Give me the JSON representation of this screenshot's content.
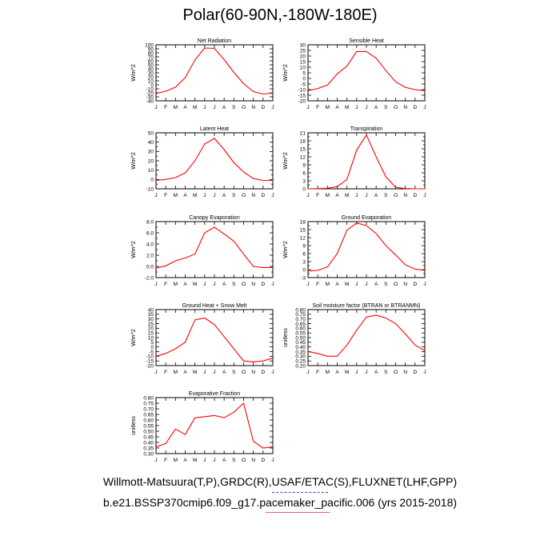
{
  "title": "Polar(60-90N,-180W-180E)",
  "footer": {
    "line1": "Willmott-Matsuura(T,P),GRDC(R),USAF/ETAC(S),FLUXNET(LHF,GPP)",
    "line2": "b.e21.BSSP370cmip6.f09_g17.pacemaker_pacific.006 (yrs 2015-2018)"
  },
  "colors": {
    "series": "#ff0000",
    "axes": "#000000"
  },
  "chart_data": [
    {
      "type": "line",
      "title": "Net Radiation",
      "ylabel": "W/m^2",
      "categories": [
        "J",
        "F",
        "M",
        "A",
        "M",
        "J",
        "J",
        "A",
        "S",
        "O",
        "N",
        "D",
        "J"
      ],
      "ylim": [
        -40,
        100
      ],
      "yticks": [
        -40,
        -30,
        -20,
        -10,
        0,
        10,
        20,
        30,
        40,
        50,
        60,
        70,
        80,
        90,
        100
      ],
      "ytick_labels": [
        "-40",
        "-30",
        "-20",
        "-10",
        "0",
        "10",
        "20",
        "30",
        "40",
        "50",
        "60",
        "70",
        "80",
        "90",
        "100"
      ],
      "values": [
        -22,
        -16,
        -6,
        18,
        62,
        92,
        91,
        63,
        31,
        3,
        -17,
        -23,
        -21
      ]
    },
    {
      "type": "line",
      "title": "Sensible Heat",
      "ylabel": "W/m^2",
      "categories": [
        "J",
        "F",
        "M",
        "A",
        "M",
        "J",
        "J",
        "A",
        "S",
        "O",
        "N",
        "D",
        "J"
      ],
      "ylim": [
        -20,
        30
      ],
      "yticks": [
        -20,
        -15,
        -10,
        -5,
        0,
        5,
        10,
        15,
        20,
        25,
        30
      ],
      "ytick_labels": [
        "-20",
        "-15",
        "-10",
        "-5",
        "0",
        "5",
        "10",
        "15",
        "20",
        "25",
        "30"
      ],
      "values": [
        -11,
        -9,
        -6,
        4,
        11,
        24,
        24,
        18,
        7,
        -3,
        -8,
        -10,
        -11
      ]
    },
    {
      "type": "line",
      "title": "Latent Heat",
      "ylabel": "W/m^2",
      "categories": [
        "J",
        "F",
        "M",
        "A",
        "M",
        "J",
        "J",
        "A",
        "S",
        "O",
        "N",
        "D",
        "J"
      ],
      "ylim": [
        -10,
        50
      ],
      "yticks": [
        -10,
        -5,
        0,
        5,
        10,
        15,
        20,
        25,
        30,
        35,
        40,
        45,
        50
      ],
      "ytick_labels": [
        "-10",
        "",
        "0",
        "",
        "10",
        "",
        "20",
        "",
        "30",
        "",
        "40",
        "",
        "50"
      ],
      "values": [
        -1,
        0,
        2,
        7,
        20,
        38,
        44,
        32,
        18,
        8,
        1,
        -1,
        -1
      ]
    },
    {
      "type": "line",
      "title": "Transpiration",
      "ylabel": "W/m^2",
      "categories": [
        "J",
        "F",
        "M",
        "A",
        "M",
        "J",
        "J",
        "A",
        "S",
        "O",
        "N",
        "D",
        "J"
      ],
      "ylim": [
        0,
        21
      ],
      "yticks": [
        0,
        1.5,
        3,
        4.5,
        6,
        7.5,
        9,
        10.5,
        12,
        13.5,
        15,
        16.5,
        18,
        19.5,
        21
      ],
      "ytick_labels": [
        "0",
        "",
        "3",
        "",
        "6",
        "",
        "9",
        "",
        "12",
        "",
        "15",
        "",
        "18",
        "",
        "21"
      ],
      "values": [
        0,
        0.05,
        0.2,
        0.8,
        3.5,
        14.5,
        20.2,
        12,
        4.5,
        0.6,
        0.1,
        0,
        0
      ]
    },
    {
      "type": "line",
      "title": "Canopy Evaporation",
      "ylabel": "W/m^2",
      "categories": [
        "J",
        "F",
        "M",
        "A",
        "M",
        "J",
        "J",
        "A",
        "S",
        "O",
        "N",
        "D",
        "J"
      ],
      "ylim": [
        -2,
        8
      ],
      "yticks": [
        -2,
        -1,
        0,
        1,
        2,
        3,
        4,
        5,
        6,
        7,
        8
      ],
      "ytick_labels": [
        "-2.0",
        "",
        "0.0",
        "",
        "2.0",
        "",
        "4.0",
        "",
        "6.0",
        "",
        "8.0"
      ],
      "values": [
        -0.3,
        0.1,
        1,
        1.5,
        2.2,
        6,
        7,
        5.8,
        4.5,
        2.2,
        0,
        -0.2,
        -0.2
      ]
    },
    {
      "type": "line",
      "title": "Ground Evaporation",
      "ylabel": "W/m^2",
      "categories": [
        "J",
        "F",
        "M",
        "A",
        "M",
        "J",
        "J",
        "A",
        "S",
        "O",
        "N",
        "D",
        "J"
      ],
      "ylim": [
        -3,
        18
      ],
      "yticks": [
        -3,
        -1.5,
        0,
        1.5,
        3,
        4.5,
        6,
        7.5,
        9,
        10.5,
        12,
        13.5,
        15,
        16.5,
        18
      ],
      "ytick_labels": [
        "-3",
        "",
        "0",
        "",
        "3",
        "",
        "6",
        "",
        "9",
        "",
        "12",
        "",
        "15",
        "",
        "18"
      ],
      "values": [
        -0.5,
        -0.3,
        1,
        6,
        14.8,
        17.5,
        16.5,
        13.5,
        9,
        5.5,
        1.8,
        0.2,
        -0.3
      ]
    },
    {
      "type": "line",
      "title": "Ground Heat + Snow Melt",
      "ylabel": "W/m^2",
      "categories": [
        "J",
        "F",
        "M",
        "A",
        "M",
        "J",
        "J",
        "A",
        "S",
        "O",
        "N",
        "D",
        "J"
      ],
      "ylim": [
        -20,
        40
      ],
      "yticks": [
        -20,
        -15,
        -10,
        -5,
        0,
        5,
        10,
        15,
        20,
        25,
        30,
        35,
        40
      ],
      "ytick_labels": [
        "-20",
        "-15",
        "-10",
        "-5",
        "0",
        "5",
        "10",
        "15",
        "20",
        "25",
        "30",
        "35",
        "40"
      ],
      "values": [
        -10,
        -7,
        -2,
        5,
        29,
        31,
        24,
        11,
        -2,
        -15,
        -16,
        -15,
        -12
      ]
    },
    {
      "type": "line",
      "title": "Soil moisture factor (BTRAN or BTRANMN)",
      "ylabel": "unitless",
      "categories": [
        "J",
        "F",
        "M",
        "A",
        "M",
        "J",
        "J",
        "A",
        "S",
        "O",
        "N",
        "D",
        "J"
      ],
      "ylim": [
        0.2,
        0.8
      ],
      "yticks": [
        0.2,
        0.25,
        0.3,
        0.35,
        0.4,
        0.45,
        0.5,
        0.55,
        0.6,
        0.65,
        0.7,
        0.75,
        0.8
      ],
      "ytick_labels": [
        "0.20",
        "0.25",
        "0.30",
        "0.35",
        "0.40",
        "0.45",
        "0.50",
        "0.55",
        "0.60",
        "0.65",
        "0.70",
        "0.75",
        "0.80"
      ],
      "values": [
        0.35,
        0.33,
        0.3,
        0.3,
        0.42,
        0.58,
        0.72,
        0.74,
        0.71,
        0.65,
        0.54,
        0.42,
        0.36
      ]
    },
    {
      "type": "line",
      "title": "Evaporative Fraction",
      "ylabel": "unitless",
      "categories": [
        "J",
        "F",
        "M",
        "A",
        "M",
        "J",
        "J",
        "A",
        "S",
        "O",
        "N",
        "D",
        "J"
      ],
      "ylim": [
        0.3,
        0.8
      ],
      "yticks": [
        0.3,
        0.35,
        0.4,
        0.45,
        0.5,
        0.55,
        0.6,
        0.65,
        0.7,
        0.75,
        0.8
      ],
      "ytick_labels": [
        "0.30",
        "0.35",
        "0.40",
        "0.45",
        "0.50",
        "0.55",
        "0.60",
        "0.65",
        "0.70",
        "0.75",
        "0.80"
      ],
      "values": [
        0.36,
        0.39,
        0.52,
        0.47,
        0.62,
        0.63,
        0.64,
        0.62,
        0.67,
        0.75,
        0.41,
        0.35,
        0.36
      ]
    }
  ]
}
